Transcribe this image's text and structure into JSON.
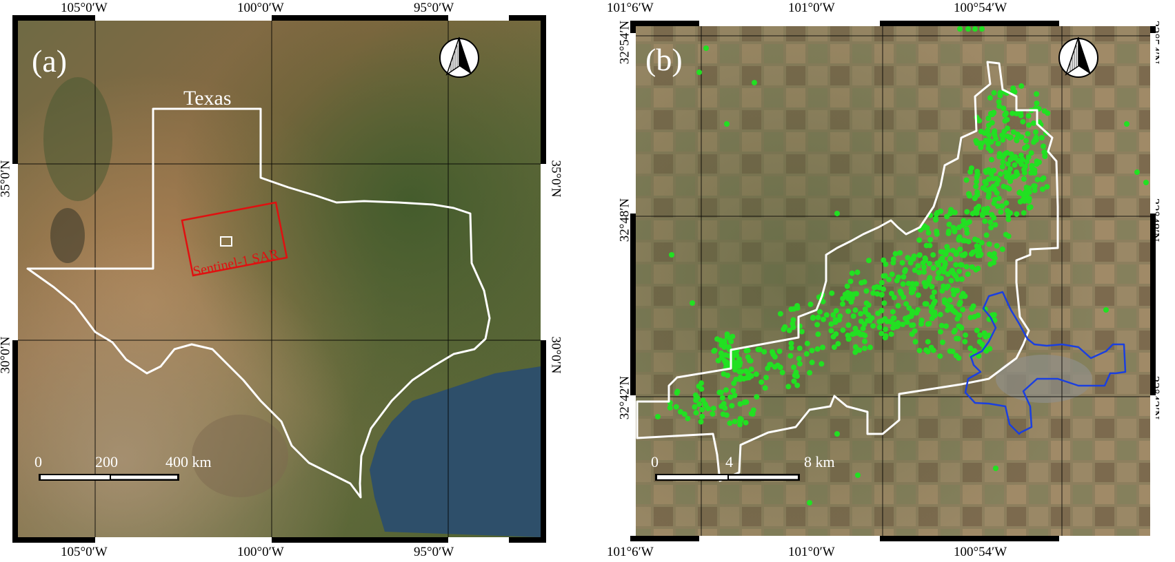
{
  "panel_a": {
    "letter": "(a)",
    "region_label": "Texas",
    "sar_label": "Sentinel-1 SAR",
    "lon_ticks": [
      "105°0′W",
      "100°0′W",
      "95°0′W"
    ],
    "lat_ticks": [
      "35°0′N",
      "30°0′N"
    ],
    "scalebar": [
      "0",
      "200",
      "400 km"
    ],
    "colors": {
      "state_outline": "#ffffff",
      "sar_frame": "#e01010",
      "study_box": "#ffffff"
    }
  },
  "panel_b": {
    "letter": "(b)",
    "lon_ticks": [
      "101°6′W",
      "101°0′W",
      "100°54′W"
    ],
    "lat_ticks": [
      "32°54′N",
      "32°48′N",
      "32°42′N"
    ],
    "scalebar": [
      "0",
      "4",
      "8 km"
    ],
    "colors": {
      "study_area": "#ffffff",
      "city_boundary": "#1a3fe0",
      "points": "#22e022"
    }
  }
}
